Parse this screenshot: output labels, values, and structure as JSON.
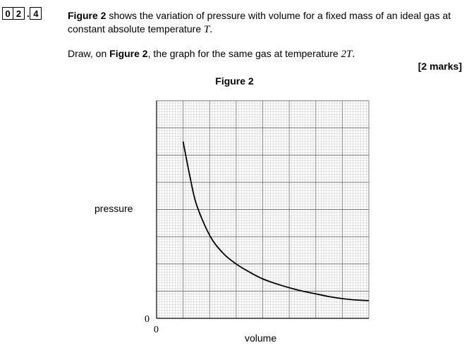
{
  "question": {
    "number_digits": [
      "0",
      "2",
      "4"
    ],
    "separator": ".",
    "stem_fig": "Figure 2",
    "stem_text_1": " shows the variation of pressure with volume for a fixed mass of an ideal gas at constant absolute temperature ",
    "stem_var": "T",
    "stem_end": ".",
    "instruction_pre": "Draw, on ",
    "instruction_fig": "Figure 2",
    "instruction_text": ", the graph for the same gas at temperature ",
    "instruction_var": "2T",
    "instruction_end": ".",
    "marks": "[2 marks]"
  },
  "figure": {
    "title": "Figure 2",
    "x_axis_label": "volume",
    "y_axis_label": "pressure",
    "x_origin_label": "0",
    "y_origin_label": "0"
  },
  "chart_data": {
    "type": "line",
    "xlabel": "volume",
    "ylabel": "pressure",
    "x_ticks": [
      "0"
    ],
    "y_ticks": [
      "0"
    ],
    "grid": true,
    "series": [
      {
        "x": [
          2.0,
          2.5,
          3.0,
          4.0,
          5.0,
          6.0,
          7.0,
          8.0,
          9.0,
          10.0,
          11.0,
          12.0,
          13.0,
          14.0,
          15.0,
          16.0
        ],
        "y": [
          13.0,
          10.5,
          8.4,
          6.1,
          4.8,
          4.0,
          3.4,
          2.9,
          2.55,
          2.25,
          2.0,
          1.8,
          1.6,
          1.45,
          1.35,
          1.3
        ]
      }
    ]
  }
}
